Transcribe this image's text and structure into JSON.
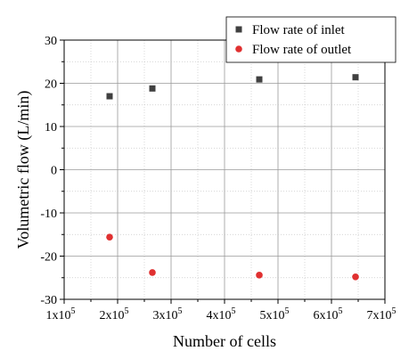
{
  "chart_data": {
    "type": "scatter",
    "title": "",
    "xlabel": "Number of cells",
    "ylabel": "Volumetric flow (L/min)",
    "xlim": [
      100000,
      700000
    ],
    "ylim": [
      -30,
      30
    ],
    "x_ticks": [
      100000,
      200000,
      300000,
      400000,
      500000,
      600000,
      700000
    ],
    "x_tick_labels": [
      {
        "base": "1x10",
        "exp": "5"
      },
      {
        "base": "2x10",
        "exp": "5"
      },
      {
        "base": "3x10",
        "exp": "5"
      },
      {
        "base": "4x10",
        "exp": "5"
      },
      {
        "base": "5x10",
        "exp": "5"
      },
      {
        "base": "6x10",
        "exp": "5"
      },
      {
        "base": "7x10",
        "exp": "5"
      }
    ],
    "y_ticks": [
      -30,
      -20,
      -10,
      0,
      10,
      20,
      30
    ],
    "y_tick_labels": [
      "-30",
      "-20",
      "-10",
      "0",
      "10",
      "20",
      "30"
    ],
    "grid": true,
    "legend_position": "top-right",
    "series": [
      {
        "name": "Flow rate of inlet",
        "marker": "square",
        "color": "#404040",
        "points": [
          {
            "x": 185000,
            "y": 17.0
          },
          {
            "x": 265000,
            "y": 18.8
          },
          {
            "x": 465000,
            "y": 20.9
          },
          {
            "x": 645000,
            "y": 21.4
          }
        ]
      },
      {
        "name": "Flow rate of outlet",
        "marker": "circle",
        "color": "#e03030",
        "points": [
          {
            "x": 185000,
            "y": -15.6
          },
          {
            "x": 265000,
            "y": -23.8
          },
          {
            "x": 465000,
            "y": -24.4
          },
          {
            "x": 645000,
            "y": -24.8
          }
        ]
      }
    ]
  }
}
